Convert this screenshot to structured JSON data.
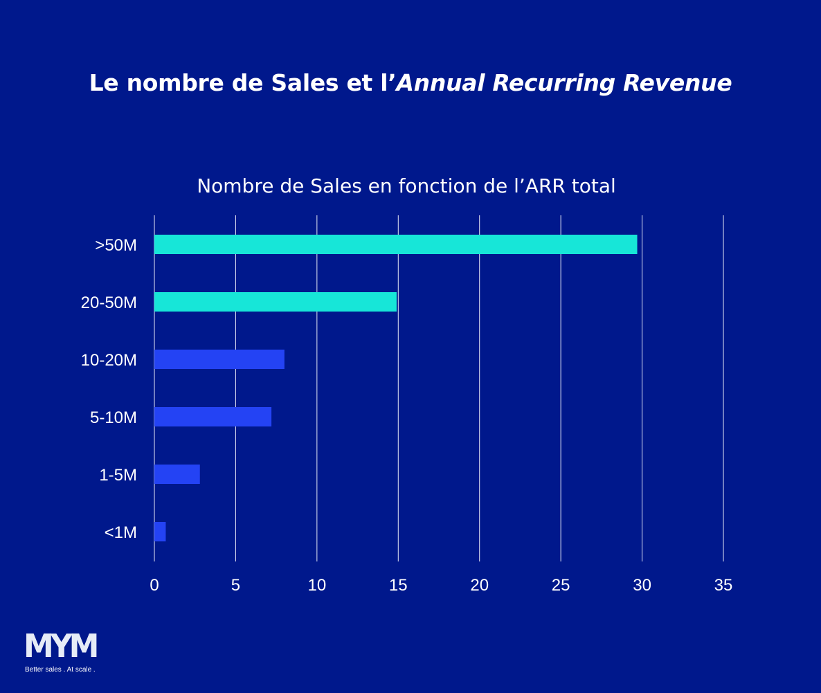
{
  "colors": {
    "background": "#00188c",
    "text": "#ffffff",
    "gridline": "#e6e9f5",
    "bar_highlight": "#17e6d8",
    "bar_standard": "#2443f4"
  },
  "header": {
    "title_regular": "Le nombre de Sales et l’",
    "title_italic": "Annual Recurring Revenue"
  },
  "chart_data": {
    "type": "bar",
    "orientation": "horizontal",
    "title": "Nombre de Sales en fonction de l’ARR  total",
    "categories": [
      ">50M",
      "20-50M",
      "10-20M",
      "5-10M",
      "1-5M",
      "<1M"
    ],
    "values": [
      29.7,
      14.9,
      8.0,
      7.2,
      2.8,
      0.7
    ],
    "bar_colors": [
      "#17e6d8",
      "#17e6d8",
      "#2443f4",
      "#2443f4",
      "#2443f4",
      "#2443f4"
    ],
    "xlim": [
      0,
      35
    ],
    "xticks": [
      "0",
      "5",
      "10",
      "15",
      "20",
      "25",
      "30",
      "35"
    ],
    "grid": true,
    "legend": "none",
    "xlabel": "",
    "ylabel": ""
  },
  "logo": {
    "text": "MYM",
    "tagline": "Better sales  .  At scale  ."
  }
}
